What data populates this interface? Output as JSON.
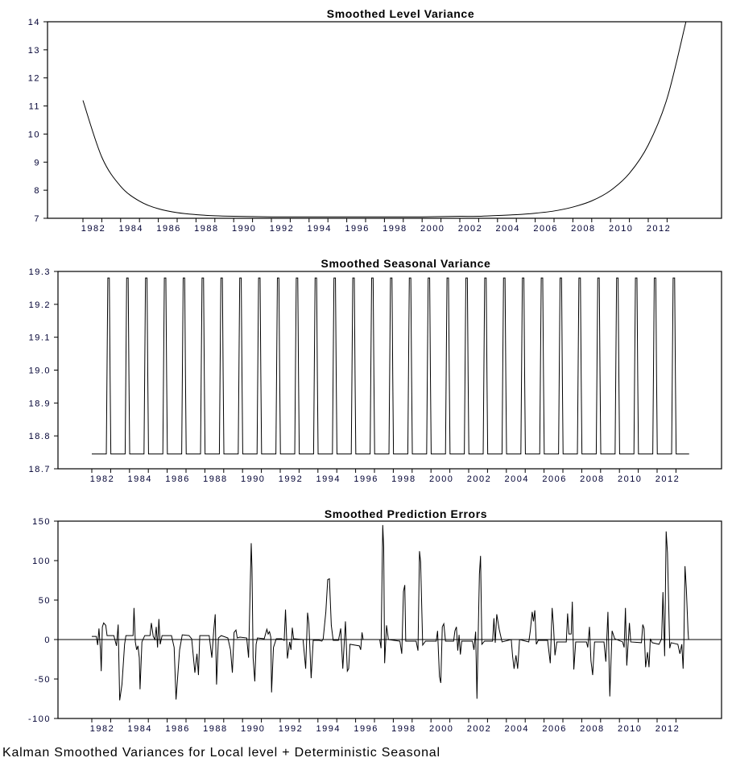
{
  "footer": "Kalman Smoothed Variances for Local level + Deterministic Seasonal",
  "chart_data": [
    {
      "type": "line",
      "title": "Smoothed Level Variance",
      "xlabel": "",
      "ylabel": "",
      "ylim": [
        7,
        14
      ],
      "yticks": [
        "7",
        "8",
        "9",
        "10",
        "11",
        "12",
        "13",
        "14"
      ],
      "xticks": [
        "1982",
        "1984",
        "1986",
        "1988",
        "1990",
        "1992",
        "1994",
        "1996",
        "1998",
        "2000",
        "2002",
        "2004",
        "2006",
        "2008",
        "2010",
        "2012"
      ],
      "x": [
        1982,
        1983,
        1984,
        1985,
        1986,
        1987,
        1988,
        1989,
        1990,
        1991,
        1992,
        1993,
        1994,
        1995,
        1996,
        1997,
        1998,
        1999,
        2000,
        2001,
        2002,
        2003,
        2004,
        2005,
        2006,
        2007,
        2008,
        2009,
        2010,
        2011,
        2012,
        2013,
        2014
      ],
      "values": [
        11.2,
        9.18,
        8.14,
        7.61,
        7.34,
        7.2,
        7.13,
        7.09,
        7.07,
        7.06,
        7.05,
        7.05,
        7.05,
        7.05,
        7.05,
        7.05,
        7.05,
        7.05,
        7.05,
        7.06,
        7.07,
        7.07,
        7.1,
        7.13,
        7.18,
        7.26,
        7.4,
        7.62,
        7.99,
        8.6,
        9.61,
        11.27,
        14.0
      ],
      "grid": false
    },
    {
      "type": "line",
      "title": "Smoothed Seasonal Variance",
      "xlabel": "",
      "ylabel": "",
      "ylim": [
        18.7,
        19.3
      ],
      "yticks": [
        "18.7",
        "18.8",
        "18.9",
        "19.0",
        "19.1",
        "19.2",
        "19.3"
      ],
      "xticks": [
        "1982",
        "1984",
        "1986",
        "1988",
        "1990",
        "1992",
        "1994",
        "1996",
        "1998",
        "2000",
        "2002",
        "2004",
        "2006",
        "2008",
        "2010",
        "2012"
      ],
      "x_range": [
        1982.0,
        2013.7
      ],
      "baseline": 18.745,
      "peak": 19.28,
      "spike_years": [
        1982.85,
        1983.85,
        1984.85,
        1985.85,
        1986.85,
        1987.85,
        1988.85,
        1989.85,
        1990.85,
        1991.85,
        1992.85,
        1993.85,
        1994.85,
        1995.85,
        1996.85,
        1997.85,
        1998.85,
        1999.85,
        2000.85,
        2001.85,
        2002.85,
        2003.85,
        2004.85,
        2005.85,
        2006.85,
        2007.85,
        2008.85,
        2009.85,
        2010.85,
        2011.85,
        2012.85
      ],
      "grid": false
    },
    {
      "type": "line",
      "title": "Smoothed Prediction Errors",
      "xlabel": "",
      "ylabel": "",
      "ylim": [
        -100,
        150
      ],
      "yticks": [
        "-100",
        "-50",
        "0",
        "50",
        "100",
        "150"
      ],
      "xticks": [
        "1982",
        "1984",
        "1986",
        "1988",
        "1990",
        "1992",
        "1994",
        "1996",
        "1998",
        "2000",
        "2002",
        "2004",
        "2006",
        "2008",
        "2010",
        "2012"
      ],
      "zero_line": true,
      "points": [
        [
          1982.0,
          4
        ],
        [
          1982.24,
          4
        ],
        [
          1982.31,
          -7
        ],
        [
          1982.38,
          14
        ],
        [
          1982.46,
          -13
        ],
        [
          1982.5,
          -40
        ],
        [
          1982.56,
          16
        ],
        [
          1982.63,
          21
        ],
        [
          1982.74,
          18
        ],
        [
          1982.81,
          5
        ],
        [
          1983.17,
          5
        ],
        [
          1983.31,
          -8
        ],
        [
          1983.4,
          19
        ],
        [
          1983.48,
          -77
        ],
        [
          1983.6,
          -57
        ],
        [
          1983.74,
          -6
        ],
        [
          1983.81,
          5
        ],
        [
          1984.19,
          5
        ],
        [
          1984.24,
          40
        ],
        [
          1984.31,
          -3
        ],
        [
          1984.38,
          -13
        ],
        [
          1984.45,
          -8
        ],
        [
          1984.52,
          -23
        ],
        [
          1984.56,
          -63
        ],
        [
          1984.66,
          -3
        ],
        [
          1984.81,
          5
        ],
        [
          1985.09,
          5
        ],
        [
          1985.16,
          21
        ],
        [
          1985.26,
          4
        ],
        [
          1985.35,
          0
        ],
        [
          1985.42,
          16
        ],
        [
          1985.49,
          -10
        ],
        [
          1985.56,
          26
        ],
        [
          1985.63,
          -6
        ],
        [
          1985.73,
          5
        ],
        [
          1986.23,
          5
        ],
        [
          1986.37,
          -10
        ],
        [
          1986.47,
          -76
        ],
        [
          1986.66,
          -13
        ],
        [
          1986.8,
          6
        ],
        [
          1987.16,
          5
        ],
        [
          1987.3,
          1
        ],
        [
          1987.47,
          -42
        ],
        [
          1987.58,
          -18
        ],
        [
          1987.66,
          -45
        ],
        [
          1987.73,
          5
        ],
        [
          1988.23,
          5
        ],
        [
          1988.37,
          -23
        ],
        [
          1988.47,
          11
        ],
        [
          1988.55,
          32
        ],
        [
          1988.62,
          -57
        ],
        [
          1988.72,
          2
        ],
        [
          1988.87,
          5
        ],
        [
          1989.22,
          2
        ],
        [
          1989.36,
          -13
        ],
        [
          1989.46,
          -42
        ],
        [
          1989.55,
          9
        ],
        [
          1989.65,
          12
        ],
        [
          1989.72,
          2
        ],
        [
          1989.86,
          3
        ],
        [
          1990.22,
          2
        ],
        [
          1990.32,
          -23
        ],
        [
          1990.46,
          122
        ],
        [
          1990.5,
          91
        ],
        [
          1990.56,
          -23
        ],
        [
          1990.65,
          -53
        ],
        [
          1990.72,
          -6
        ],
        [
          1990.79,
          2
        ],
        [
          1991.15,
          1
        ],
        [
          1991.29,
          13
        ],
        [
          1991.36,
          7
        ],
        [
          1991.43,
          10
        ],
        [
          1991.5,
          3
        ],
        [
          1991.54,
          -67
        ],
        [
          1991.64,
          -10
        ],
        [
          1991.79,
          1
        ],
        [
          1992.07,
          1
        ],
        [
          1992.21,
          -1
        ],
        [
          1992.28,
          38
        ],
        [
          1992.38,
          -24
        ],
        [
          1992.5,
          -3
        ],
        [
          1992.57,
          -13
        ],
        [
          1992.64,
          15
        ],
        [
          1992.71,
          1
        ],
        [
          1993.21,
          0
        ],
        [
          1993.35,
          -37
        ],
        [
          1993.45,
          34
        ],
        [
          1993.52,
          20
        ],
        [
          1993.64,
          -49
        ],
        [
          1993.75,
          -1
        ],
        [
          1994.07,
          -1
        ],
        [
          1994.21,
          -2
        ],
        [
          1994.28,
          1
        ],
        [
          1994.42,
          35
        ],
        [
          1994.52,
          76
        ],
        [
          1994.61,
          77
        ],
        [
          1994.71,
          18
        ],
        [
          1994.81,
          -1
        ],
        [
          1995.09,
          -1
        ],
        [
          1995.21,
          14
        ],
        [
          1995.32,
          -37
        ],
        [
          1995.46,
          23
        ],
        [
          1995.56,
          -40
        ],
        [
          1995.63,
          -37
        ],
        [
          1995.7,
          -6
        ],
        [
          1996.2,
          -8
        ],
        [
          1996.27,
          -13
        ],
        [
          1996.34,
          9
        ],
        [
          1996.4,
          0
        ],
        [
          1997.28,
          0
        ],
        [
          1997.35,
          -11
        ],
        [
          1997.44,
          145
        ],
        [
          1997.49,
          117
        ],
        [
          1997.54,
          -30
        ],
        [
          1997.64,
          18
        ],
        [
          1997.74,
          0
        ],
        [
          1998.35,
          -2
        ],
        [
          1998.45,
          -18
        ],
        [
          1998.54,
          61
        ],
        [
          1998.61,
          69
        ],
        [
          1998.66,
          -2
        ],
        [
          1999.21,
          -2
        ],
        [
          1999.31,
          -14
        ],
        [
          1999.39,
          112
        ],
        [
          1999.45,
          98
        ],
        [
          1999.56,
          -7
        ],
        [
          1999.71,
          -2
        ],
        [
          2000.28,
          -2
        ],
        [
          2000.35,
          11
        ],
        [
          2000.45,
          -47
        ],
        [
          2000.52,
          -55
        ],
        [
          2000.6,
          16
        ],
        [
          2000.68,
          20
        ],
        [
          2000.77,
          -2
        ],
        [
          2001.2,
          -2
        ],
        [
          2001.27,
          11
        ],
        [
          2001.35,
          16
        ],
        [
          2001.42,
          -14
        ],
        [
          2001.49,
          6
        ],
        [
          2001.56,
          -19
        ],
        [
          2001.63,
          -2
        ],
        [
          2002.2,
          -2
        ],
        [
          2002.28,
          -13
        ],
        [
          2002.37,
          10
        ],
        [
          2002.44,
          -75
        ],
        [
          2002.51,
          11
        ],
        [
          2002.57,
          83
        ],
        [
          2002.63,
          106
        ],
        [
          2002.7,
          -6
        ],
        [
          2002.84,
          -2
        ],
        [
          2003.27,
          -2
        ],
        [
          2003.34,
          27
        ],
        [
          2003.41,
          -4
        ],
        [
          2003.49,
          32
        ],
        [
          2003.62,
          13
        ],
        [
          2003.77,
          -3
        ],
        [
          2004.26,
          0
        ],
        [
          2004.33,
          -21
        ],
        [
          2004.41,
          -37
        ],
        [
          2004.51,
          -20
        ],
        [
          2004.6,
          -37
        ],
        [
          2004.7,
          0
        ],
        [
          2005.19,
          -3
        ],
        [
          2005.27,
          11
        ],
        [
          2005.37,
          35
        ],
        [
          2005.44,
          23
        ],
        [
          2005.51,
          37
        ],
        [
          2005.59,
          -6
        ],
        [
          2005.69,
          -1
        ],
        [
          2006.19,
          -1
        ],
        [
          2006.33,
          -30
        ],
        [
          2006.43,
          40
        ],
        [
          2006.5,
          18
        ],
        [
          2006.58,
          -20
        ],
        [
          2006.68,
          -3
        ],
        [
          2007.18,
          -3
        ],
        [
          2007.25,
          33
        ],
        [
          2007.32,
          7
        ],
        [
          2007.44,
          7
        ],
        [
          2007.5,
          48
        ],
        [
          2007.58,
          -38
        ],
        [
          2007.68,
          -3
        ],
        [
          2008.25,
          -3
        ],
        [
          2008.32,
          -10
        ],
        [
          2008.41,
          16
        ],
        [
          2008.49,
          -27
        ],
        [
          2008.58,
          -45
        ],
        [
          2008.68,
          -3
        ],
        [
          2009.18,
          -3
        ],
        [
          2009.28,
          -28
        ],
        [
          2009.39,
          35
        ],
        [
          2009.49,
          -72
        ],
        [
          2009.61,
          11
        ],
        [
          2009.75,
          1
        ],
        [
          2010.17,
          -3
        ],
        [
          2010.25,
          -10
        ],
        [
          2010.32,
          40
        ],
        [
          2010.39,
          -33
        ],
        [
          2010.53,
          21
        ],
        [
          2010.6,
          -3
        ],
        [
          2011.17,
          -4
        ],
        [
          2011.24,
          19
        ],
        [
          2011.31,
          14
        ],
        [
          2011.39,
          -35
        ],
        [
          2011.49,
          -16
        ],
        [
          2011.57,
          -35
        ],
        [
          2011.64,
          1
        ],
        [
          2011.74,
          -4
        ],
        [
          2012.1,
          -6
        ],
        [
          2012.24,
          1
        ],
        [
          2012.31,
          60
        ],
        [
          2012.4,
          -21
        ],
        [
          2012.48,
          137
        ],
        [
          2012.55,
          110
        ],
        [
          2012.67,
          -11
        ],
        [
          2012.74,
          -4
        ],
        [
          2013.1,
          -6
        ],
        [
          2013.21,
          -18
        ],
        [
          2013.31,
          -6
        ],
        [
          2013.38,
          -37
        ],
        [
          2013.42,
          -3
        ],
        [
          2013.48,
          93
        ],
        [
          2013.55,
          65
        ],
        [
          2013.64,
          11
        ],
        [
          2013.67,
          0
        ]
      ],
      "grid": false
    }
  ]
}
